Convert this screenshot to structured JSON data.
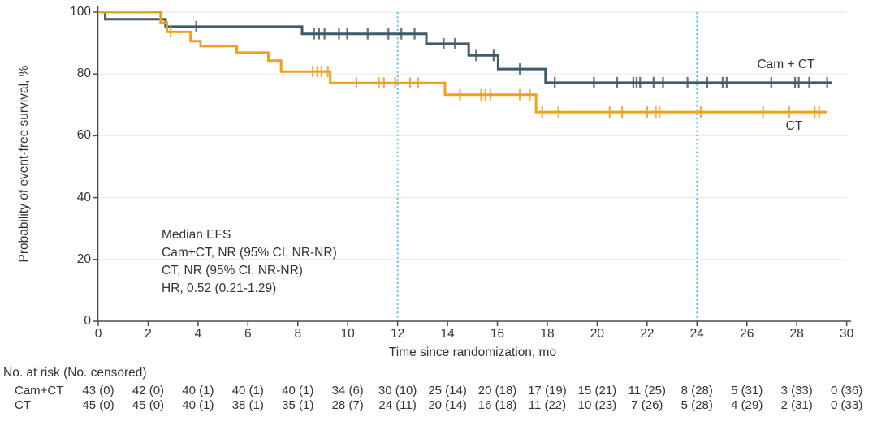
{
  "annotation": {
    "lines": [
      "Median EFS",
      "Cam+CT, NR (95% CI, NR-NR)",
      "CT, NR (95% CI, NR-NR)",
      "HR, 0.52 (0.21-1.29)"
    ]
  },
  "chart_data": {
    "type": "line",
    "subtype": "kaplan-meier-step",
    "xlabel": "Time since randomization, mo",
    "ylabel": "Probability of event-free survival, %",
    "xlim": [
      0,
      30
    ],
    "ylim": [
      0,
      100
    ],
    "x_ticks": [
      0,
      2,
      4,
      6,
      8,
      10,
      12,
      14,
      16,
      18,
      20,
      22,
      24,
      26,
      28,
      30
    ],
    "y_ticks": [
      0,
      20,
      40,
      60,
      80,
      100
    ],
    "grid": "horizontal-light",
    "grid_color": "#ebebeb",
    "axis_color": "#4d4d4d",
    "reference_lines_x": [
      12,
      24
    ],
    "reference_line_color": "#4fc0e8",
    "legend_position": "curve-end-labels",
    "series": [
      {
        "name": "Cam + CT",
        "color": "#3e5b6c",
        "steps": [
          [
            0,
            100
          ],
          [
            0.28,
            100
          ],
          [
            0.28,
            97.7
          ],
          [
            2.7,
            97.7
          ],
          [
            2.7,
            95.3
          ],
          [
            8.17,
            95.3
          ],
          [
            8.17,
            93.0
          ],
          [
            13.15,
            93.0
          ],
          [
            13.15,
            89.8
          ],
          [
            14.85,
            89.8
          ],
          [
            14.85,
            86.0
          ],
          [
            16.03,
            86.0
          ],
          [
            16.03,
            81.6
          ],
          [
            17.93,
            81.6
          ],
          [
            17.93,
            77.2
          ],
          [
            29.4,
            77.2
          ]
        ],
        "censor_marks": [
          [
            3.93,
            95.3
          ],
          [
            8.65,
            93.0
          ],
          [
            8.85,
            93.0
          ],
          [
            9.07,
            93.0
          ],
          [
            9.65,
            93.0
          ],
          [
            9.98,
            93.0
          ],
          [
            10.8,
            93.0
          ],
          [
            11.63,
            93.0
          ],
          [
            12.15,
            93.0
          ],
          [
            12.68,
            93.0
          ],
          [
            13.85,
            89.8
          ],
          [
            14.3,
            89.8
          ],
          [
            15.15,
            86.0
          ],
          [
            15.85,
            86.0
          ],
          [
            16.9,
            81.6
          ],
          [
            18.3,
            77.2
          ],
          [
            19.87,
            77.2
          ],
          [
            20.8,
            77.2
          ],
          [
            21.45,
            77.2
          ],
          [
            21.58,
            77.2
          ],
          [
            21.72,
            77.2
          ],
          [
            22.26,
            77.2
          ],
          [
            22.64,
            77.2
          ],
          [
            23.62,
            77.2
          ],
          [
            24.41,
            77.2
          ],
          [
            25.03,
            77.2
          ],
          [
            25.19,
            77.2
          ],
          [
            26.98,
            77.2
          ],
          [
            27.93,
            77.2
          ],
          [
            28.08,
            77.2
          ],
          [
            28.5,
            77.2
          ],
          [
            29.22,
            77.2
          ]
        ]
      },
      {
        "name": "CT",
        "color": "#f0a11c",
        "steps": [
          [
            0,
            100
          ],
          [
            2.5,
            100
          ],
          [
            2.5,
            96.6
          ],
          [
            2.75,
            96.6
          ],
          [
            2.75,
            93.6
          ],
          [
            3.7,
            93.6
          ],
          [
            3.7,
            90.6
          ],
          [
            4.1,
            90.6
          ],
          [
            4.1,
            89.0
          ],
          [
            5.55,
            89.0
          ],
          [
            5.55,
            86.9
          ],
          [
            6.82,
            86.9
          ],
          [
            6.82,
            84.3
          ],
          [
            7.33,
            84.3
          ],
          [
            7.33,
            80.8
          ],
          [
            9.3,
            80.8
          ],
          [
            9.3,
            77.1
          ],
          [
            13.9,
            77.1
          ],
          [
            13.9,
            73.3
          ],
          [
            17.55,
            73.3
          ],
          [
            17.55,
            67.7
          ],
          [
            29.2,
            67.7
          ]
        ],
        "censor_marks": [
          [
            2.9,
            93.6
          ],
          [
            8.6,
            80.8
          ],
          [
            8.78,
            80.8
          ],
          [
            8.95,
            80.8
          ],
          [
            9.2,
            80.8
          ],
          [
            10.35,
            77.1
          ],
          [
            11.25,
            77.1
          ],
          [
            11.45,
            77.1
          ],
          [
            11.9,
            77.1
          ],
          [
            12.5,
            77.1
          ],
          [
            12.82,
            77.1
          ],
          [
            14.5,
            73.3
          ],
          [
            15.35,
            73.3
          ],
          [
            15.52,
            73.3
          ],
          [
            15.72,
            73.3
          ],
          [
            16.9,
            73.3
          ],
          [
            17.3,
            73.3
          ],
          [
            17.8,
            67.7
          ],
          [
            18.45,
            67.7
          ],
          [
            20.5,
            67.7
          ],
          [
            21.0,
            67.7
          ],
          [
            22.0,
            67.7
          ],
          [
            22.35,
            67.7
          ],
          [
            22.5,
            67.7
          ],
          [
            24.15,
            67.7
          ],
          [
            26.65,
            67.7
          ],
          [
            27.7,
            67.7
          ],
          [
            28.72,
            67.7
          ],
          [
            28.9,
            67.7
          ]
        ]
      }
    ]
  },
  "risk_table": {
    "header": "No. at risk (No. censored)",
    "time_points": [
      0,
      2,
      4,
      6,
      8,
      10,
      12,
      14,
      16,
      18,
      20,
      22,
      24,
      26,
      28,
      30
    ],
    "rows": [
      {
        "label": "Cam+CT",
        "values": [
          "43 (0)",
          "42 (0)",
          "40 (1)",
          "40 (1)",
          "40 (1)",
          "34 (6)",
          "30 (10)",
          "25 (14)",
          "20 (18)",
          "17 (19)",
          "15 (21)",
          "11 (25)",
          "8 (28)",
          "5 (31)",
          "3 (33)",
          "0 (36)"
        ]
      },
      {
        "label": "CT",
        "values": [
          "45 (0)",
          "45 (0)",
          "40 (1)",
          "38 (1)",
          "35 (1)",
          "28 (7)",
          "24 (11)",
          "20 (14)",
          "16 (18)",
          "11 (22)",
          "10 (23)",
          "7 (26)",
          "5 (28)",
          "4 (29)",
          "2 (31)",
          "0 (33)"
        ]
      }
    ]
  }
}
